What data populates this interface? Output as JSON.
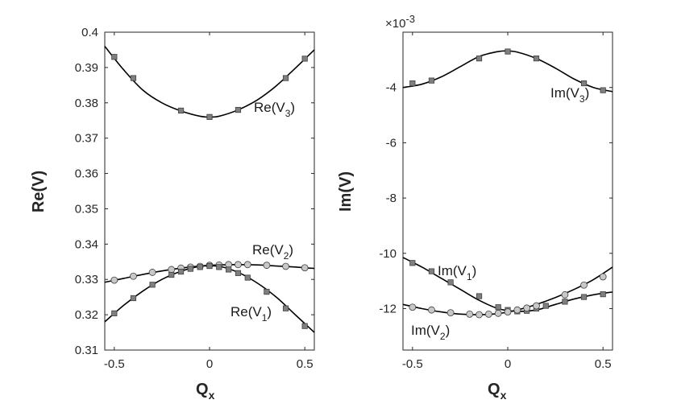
{
  "figure": {
    "left_panel": {
      "ylabel": "Re(V)",
      "xlabel_main": "Q",
      "xlabel_sub": "x"
    },
    "right_panel": {
      "ylabel": "Im(V)",
      "xlabel_main": "Q",
      "xlabel_sub": "x",
      "exponent_prefix": "×10",
      "exponent_power": "-3"
    }
  },
  "labels": {
    "re_v3": {
      "main": "Re(V",
      "sub": "3",
      "close": ")"
    },
    "re_v2": {
      "main": "Re(V",
      "sub": "2",
      "close": ")"
    },
    "re_v1": {
      "main": "Re(V",
      "sub": "1",
      "close": ")"
    },
    "im_v3": {
      "main": "Im(V",
      "sub": "3",
      "close": ")"
    },
    "im_v1": {
      "main": "Im(V",
      "sub": "1",
      "close": ")"
    },
    "im_v2": {
      "main": "Im(V",
      "sub": "2",
      "close": ")"
    }
  },
  "chart_data": [
    {
      "type": "line",
      "panel": "left",
      "xlabel": "Qx",
      "ylabel": "Re(V)",
      "xlim": [
        -0.55,
        0.55
      ],
      "ylim": [
        0.31,
        0.4
      ],
      "xticks": [
        -0.5,
        0,
        0.5
      ],
      "xtick_labels": [
        "-0.5",
        "0",
        "0.5"
      ],
      "yticks": [
        0.31,
        0.32,
        0.33,
        0.34,
        0.35,
        0.36,
        0.37,
        0.38,
        0.39,
        0.4
      ],
      "ytick_labels": [
        "0.31",
        "0.32",
        "0.33",
        "0.34",
        "0.35",
        "0.36",
        "0.37",
        "0.38",
        "0.39",
        "0.4"
      ],
      "grid": false,
      "series": [
        {
          "name": "Re(V3)",
          "marker": "square",
          "curve_x": [
            -0.55,
            -0.45,
            -0.35,
            -0.25,
            -0.15,
            -0.05,
            0.0,
            0.05,
            0.15,
            0.25,
            0.35,
            0.45,
            0.55
          ],
          "curve_y": [
            0.396,
            0.3893,
            0.3836,
            0.38,
            0.3777,
            0.3762,
            0.376,
            0.3762,
            0.378,
            0.3808,
            0.3848,
            0.3898,
            0.395
          ],
          "points_x": [
            -0.5,
            -0.4,
            -0.15,
            0.0,
            0.15,
            0.4,
            0.5
          ],
          "points_y": [
            0.393,
            0.387,
            0.3778,
            0.376,
            0.378,
            0.387,
            0.3925
          ]
        },
        {
          "name": "Re(V2)",
          "marker": "circle",
          "curve_x": [
            -0.55,
            -0.45,
            -0.35,
            -0.25,
            -0.15,
            -0.05,
            0.05,
            0.15,
            0.25,
            0.35,
            0.45,
            0.55
          ],
          "curve_y": [
            0.3292,
            0.3303,
            0.3314,
            0.3324,
            0.3332,
            0.3338,
            0.3341,
            0.3342,
            0.3341,
            0.3338,
            0.3335,
            0.3331
          ],
          "points_x": [
            -0.5,
            -0.4,
            -0.3,
            -0.2,
            -0.15,
            -0.1,
            -0.05,
            0.0,
            0.05,
            0.1,
            0.15,
            0.2,
            0.3,
            0.4,
            0.5
          ],
          "points_y": [
            0.3298,
            0.3309,
            0.332,
            0.3328,
            0.3332,
            0.3335,
            0.3337,
            0.334,
            0.3341,
            0.3342,
            0.3342,
            0.3342,
            0.334,
            0.3337,
            0.3333
          ]
        },
        {
          "name": "Re(V1)",
          "marker": "square",
          "curve_x": [
            -0.55,
            -0.45,
            -0.35,
            -0.25,
            -0.15,
            -0.05,
            0.05,
            0.15,
            0.25,
            0.35,
            0.45,
            0.55
          ],
          "curve_y": [
            0.318,
            0.3227,
            0.3267,
            0.33,
            0.3323,
            0.3337,
            0.3337,
            0.332,
            0.329,
            0.325,
            0.32,
            0.315
          ],
          "points_x": [
            -0.5,
            -0.4,
            -0.3,
            -0.2,
            -0.15,
            -0.1,
            -0.05,
            0.0,
            0.05,
            0.1,
            0.15,
            0.2,
            0.3,
            0.4,
            0.5
          ],
          "points_y": [
            0.3204,
            0.3247,
            0.3285,
            0.3313,
            0.3322,
            0.333,
            0.3335,
            0.3338,
            0.3335,
            0.3328,
            0.3318,
            0.3305,
            0.3265,
            0.3218,
            0.3168
          ]
        }
      ]
    },
    {
      "type": "line",
      "panel": "right",
      "xlabel": "Qx",
      "ylabel": "Im(V)",
      "y_scale_factor": "x10^-3",
      "xlim": [
        -0.55,
        0.55
      ],
      "ylim": [
        -13.5,
        -2.0
      ],
      "xticks": [
        -0.5,
        0,
        0.5
      ],
      "xtick_labels": [
        "-0.5",
        "0",
        "0.5"
      ],
      "yticks": [
        -12,
        -10,
        -8,
        -6,
        -4
      ],
      "ytick_labels": [
        "-12",
        "-10",
        "-8",
        "-6",
        "-4"
      ],
      "grid": false,
      "series": [
        {
          "name": "Im(V3)",
          "marker": "square",
          "curve_x": [
            -0.55,
            -0.45,
            -0.35,
            -0.25,
            -0.15,
            -0.05,
            0.0,
            0.05,
            0.15,
            0.25,
            0.35,
            0.45,
            0.55
          ],
          "curve_y": [
            -4.0,
            -3.88,
            -3.62,
            -3.25,
            -2.88,
            -2.7,
            -2.68,
            -2.72,
            -2.95,
            -3.3,
            -3.7,
            -4.0,
            -4.15
          ],
          "points_x": [
            -0.5,
            -0.4,
            -0.15,
            0.0,
            0.15,
            0.4,
            0.5
          ],
          "points_y": [
            -3.85,
            -3.75,
            -2.95,
            -2.7,
            -2.95,
            -3.85,
            -4.1
          ]
        },
        {
          "name": "Im(V1)",
          "marker": "square",
          "curve_x": [
            -0.55,
            -0.45,
            -0.35,
            -0.25,
            -0.15,
            -0.05,
            0.05,
            0.15,
            0.25,
            0.35,
            0.45,
            0.55
          ],
          "curve_y": [
            -10.15,
            -10.5,
            -10.9,
            -11.3,
            -11.7,
            -12.0,
            -12.1,
            -12.05,
            -11.85,
            -11.65,
            -11.5,
            -11.4
          ],
          "points_x": [
            -0.5,
            -0.4,
            -0.3,
            -0.15,
            -0.05,
            0.0,
            0.05,
            0.1,
            0.15,
            0.2,
            0.3,
            0.4,
            0.5
          ],
          "points_y": [
            -10.35,
            -10.65,
            -11.05,
            -11.55,
            -11.95,
            -12.05,
            -12.1,
            -12.08,
            -12.0,
            -11.9,
            -11.75,
            -11.58,
            -11.48
          ]
        },
        {
          "name": "Im(V2)",
          "marker": "circle",
          "curve_x": [
            -0.55,
            -0.45,
            -0.35,
            -0.25,
            -0.15,
            -0.05,
            0.05,
            0.15,
            0.25,
            0.35,
            0.45,
            0.55
          ],
          "curve_y": [
            -11.85,
            -12.0,
            -12.12,
            -12.2,
            -12.22,
            -12.18,
            -12.05,
            -11.85,
            -11.6,
            -11.3,
            -10.95,
            -10.5
          ],
          "points_x": [
            -0.5,
            -0.4,
            -0.3,
            -0.2,
            -0.15,
            -0.1,
            -0.05,
            0.0,
            0.05,
            0.1,
            0.15,
            0.3,
            0.4,
            0.5
          ],
          "points_y": [
            -11.95,
            -12.05,
            -12.15,
            -12.2,
            -12.22,
            -12.2,
            -12.17,
            -12.12,
            -12.05,
            -11.98,
            -11.9,
            -11.5,
            -11.15,
            -10.85
          ]
        }
      ]
    }
  ],
  "style": {
    "line_color": "#000000",
    "square_fill": "#7f7f7f",
    "circle_fill": "#c8c8c8",
    "marker_edge": "#404040",
    "axis_color": "#262626"
  }
}
